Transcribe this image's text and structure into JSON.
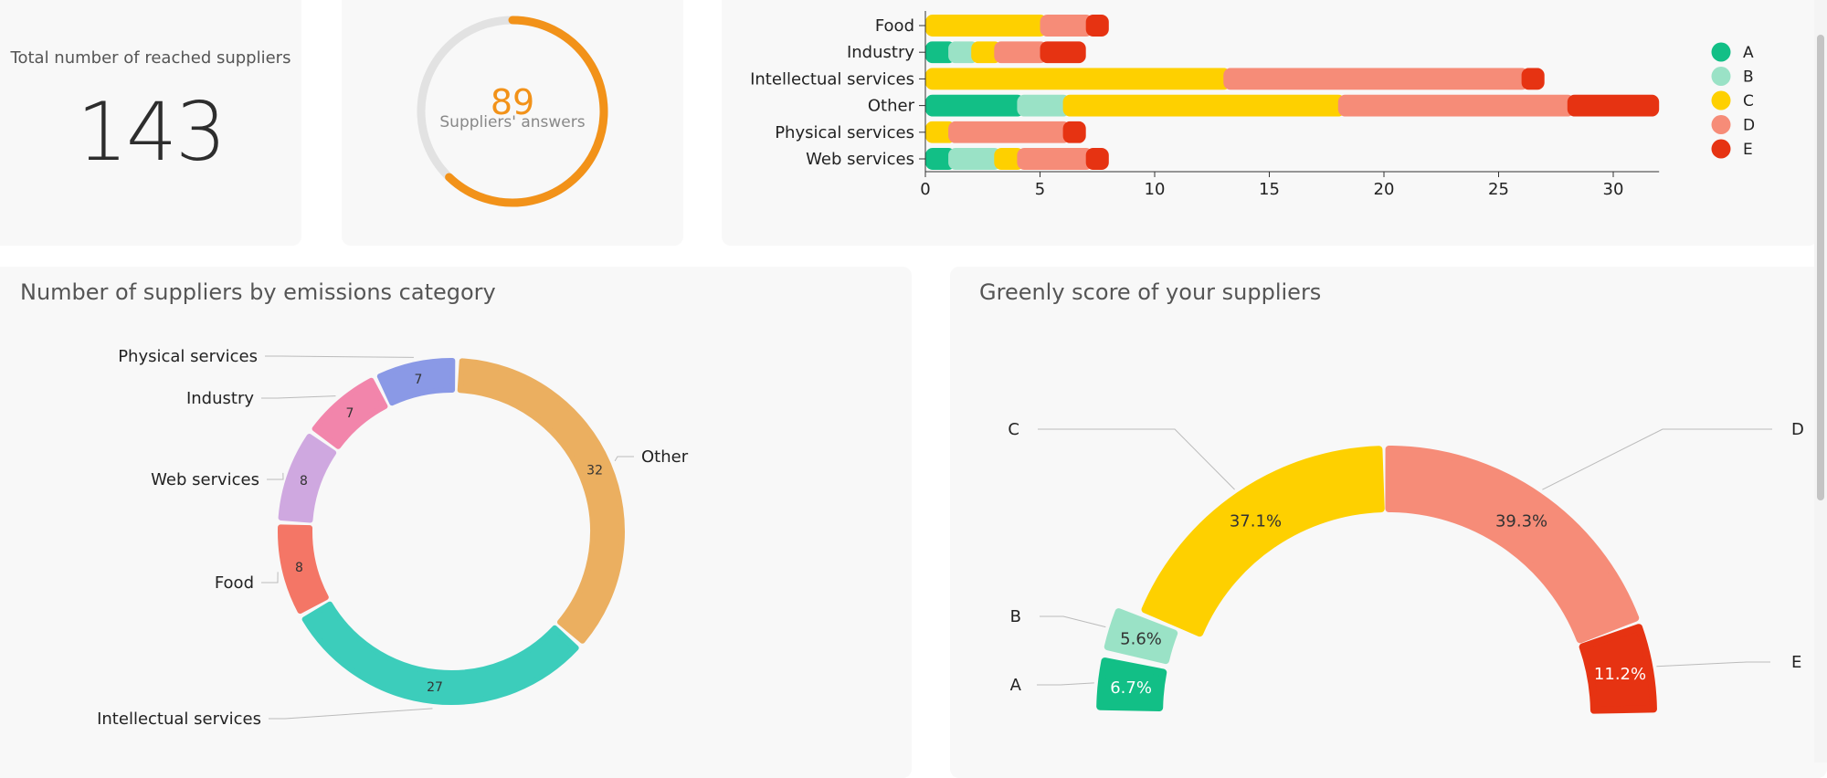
{
  "total_card": {
    "label": "Total number of reached suppliers",
    "value": "143"
  },
  "answers_card": {
    "value": "89",
    "label": "Suppliers' answers",
    "progress_fraction": 0.622,
    "accent": "#f29219",
    "track": "#e2e2e2"
  },
  "emissions_card": {
    "title": "Number of suppliers by emissions category"
  },
  "score_card": {
    "title": "Greenly score of your suppliers"
  },
  "chart_data": [
    {
      "type": "bar",
      "orientation": "horizontal",
      "stacked": true,
      "categories": [
        "Food",
        "Industry",
        "Intellectual services",
        "Other",
        "Physical services",
        "Web services"
      ],
      "series": [
        {
          "name": "A",
          "color": "#12bf86",
          "values": [
            0,
            1,
            0,
            4,
            0,
            1
          ]
        },
        {
          "name": "B",
          "color": "#9ae2c6",
          "values": [
            0,
            1,
            0,
            2,
            0,
            2
          ]
        },
        {
          "name": "C",
          "color": "#fed000",
          "values": [
            5,
            1,
            13,
            12,
            1,
            1
          ]
        },
        {
          "name": "D",
          "color": "#f68c78",
          "values": [
            2,
            2,
            13,
            10,
            5,
            3
          ]
        },
        {
          "name": "E",
          "color": "#e63312",
          "values": [
            1,
            2,
            1,
            4,
            1,
            1
          ]
        }
      ],
      "xticks": [
        "0",
        "5",
        "10",
        "15",
        "20",
        "25",
        "30"
      ],
      "xlim": [
        0,
        32
      ],
      "legend_position": "right",
      "title": "",
      "xlabel": "",
      "ylabel": ""
    },
    {
      "type": "pie",
      "donut": true,
      "title": "Number of suppliers by emissions category",
      "slices": [
        {
          "label": "Other",
          "value": 32,
          "value_label": "32",
          "color": "#ebaf60"
        },
        {
          "label": "Intellectual services",
          "value": 27,
          "value_label": "27",
          "color": "#3ccdbb"
        },
        {
          "label": "Food",
          "value": 8,
          "value_label": "8",
          "color": "#f47666"
        },
        {
          "label": "Web services",
          "value": 8,
          "value_label": "8",
          "color": "#cfa8e0"
        },
        {
          "label": "Industry",
          "value": 7,
          "value_label": "7",
          "color": "#f285ab"
        },
        {
          "label": "Physical services",
          "value": 7,
          "value_label": "7",
          "color": "#8a99e6"
        }
      ]
    },
    {
      "type": "pie",
      "half_donut": true,
      "title": "Greenly score of your suppliers",
      "slices": [
        {
          "label": "A",
          "value": 6.7,
          "value_label": "6.7%",
          "color": "#12bf86"
        },
        {
          "label": "B",
          "value": 5.6,
          "value_label": "5.6%",
          "color": "#9ae2c6"
        },
        {
          "label": "C",
          "value": 37.1,
          "value_label": "37.1%",
          "color": "#fed000"
        },
        {
          "label": "D",
          "value": 39.3,
          "value_label": "39.3%",
          "color": "#f68c78"
        },
        {
          "label": "E",
          "value": 11.2,
          "value_label": "11.2%",
          "color": "#e63312"
        }
      ]
    }
  ]
}
